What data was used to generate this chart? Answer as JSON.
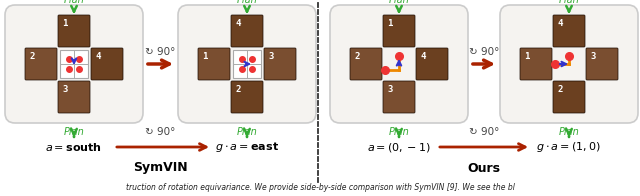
{
  "fig_width": 6.4,
  "fig_height": 1.96,
  "dpi": 100,
  "bg_color": "#ffffff",
  "panel_bg": "#f5f3f0",
  "panel_edge": "#cccccc",
  "block_colors": [
    "#6B4020",
    "#7A4E30",
    "#6B4020",
    "#7A4E30"
  ],
  "grid_bg": "#ffffff",
  "grid_edge": "#aaaaaa",
  "red_dot": "#EE3333",
  "blue_arrow": "#3333CC",
  "orange_line": "#EE8800",
  "dark_red_arrow": "#AA2200",
  "green_arrow": "#33AA33",
  "divider_color": "#333333",
  "label_color": "#000000",
  "rotate_color": "#444444",
  "symvin_label": "SymVIN",
  "ours_label": "Ours",
  "caption": "truction of rotation equivariance. We provide side-by-side comparison with SymVIN [9]. We see the bl"
}
